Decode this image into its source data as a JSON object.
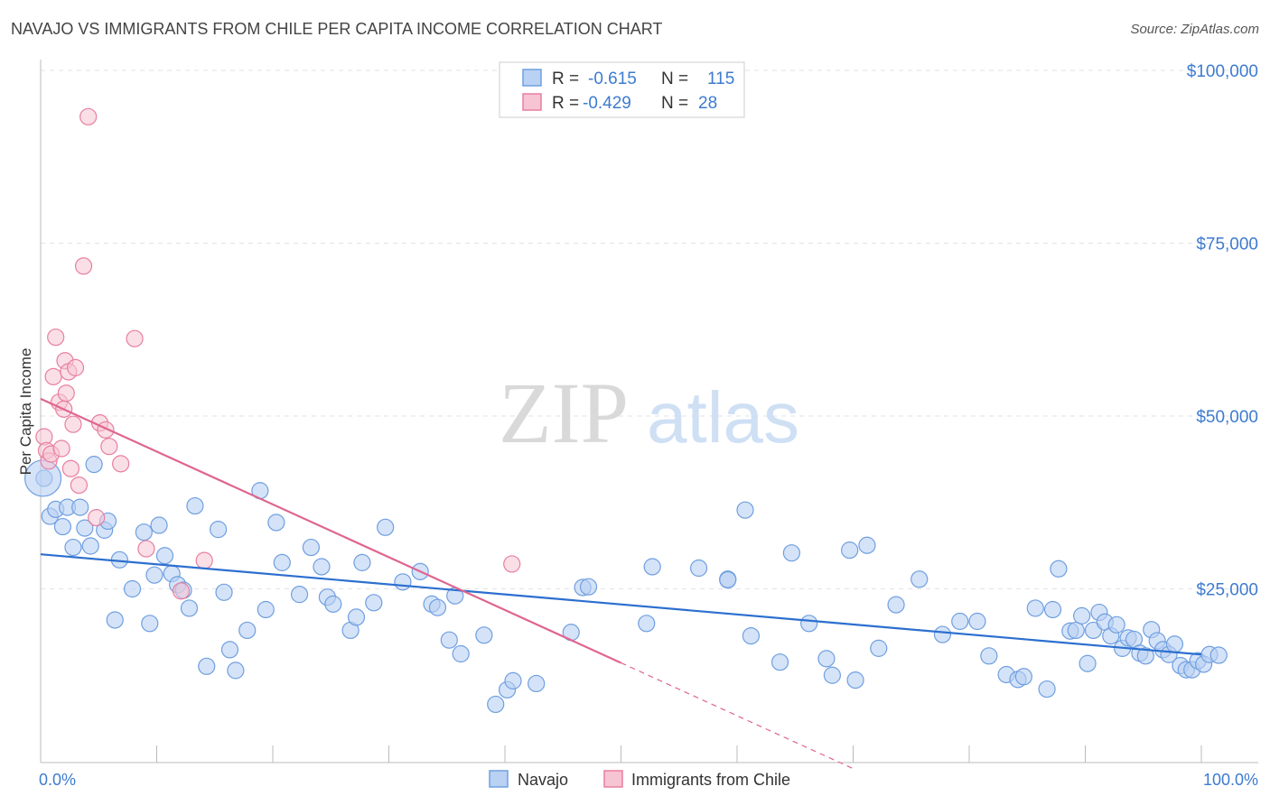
{
  "title": "NAVAJO VS IMMIGRANTS FROM CHILE PER CAPITA INCOME CORRELATION CHART",
  "source": "Source: ZipAtlas.com",
  "watermark": {
    "zip": "ZIP",
    "atlas": "atlas"
  },
  "colors": {
    "navajo": "#6f9fe0",
    "navajo_fill": "#b9d1f3",
    "chile": "#e87fa0",
    "chile_fill": "#f6c4d3",
    "navajo_line": "#2c6fcf",
    "chile_line": "#e0658f",
    "tick_text": "#3d7bd0"
  },
  "legend": {
    "r_label": "R =",
    "n_label": "N =",
    "rows": [
      {
        "series": "navajo",
        "r": "-0.615",
        "n": "115"
      },
      {
        "series": "chile",
        "r": "-0.429",
        "n": "28"
      }
    ]
  },
  "chart_data": {
    "type": "scatter",
    "title": "NAVAJO VS IMMIGRANTS FROM CHILE PER CAPITA INCOME CORRELATION CHART",
    "xlabel": "",
    "ylabel": "Per Capita Income",
    "xlim": [
      0,
      100
    ],
    "ylim": [
      0,
      105000
    ],
    "x_tick_labels": [
      "0.0%",
      "100.0%"
    ],
    "y_ticks": [
      25000,
      50000,
      75000,
      100000
    ],
    "y_tick_labels": [
      "$25,000",
      "$50,000",
      "$75,000",
      "$100,000"
    ],
    "grid": true,
    "legend_position": "bottom-center",
    "series": [
      {
        "name": "Navajo",
        "color": "#6f9fe0",
        "trend": {
          "x0": 0,
          "y0": 30000,
          "x1": 100,
          "y1": 15500
        },
        "points": [
          [
            0.3,
            41000
          ],
          [
            0.8,
            35500
          ],
          [
            1.3,
            36500
          ],
          [
            1.9,
            34000
          ],
          [
            2.3,
            36800
          ],
          [
            2.8,
            31000
          ],
          [
            3.4,
            36800
          ],
          [
            3.8,
            33800
          ],
          [
            4.3,
            31200
          ],
          [
            4.6,
            43000
          ],
          [
            5.5,
            33500
          ],
          [
            5.8,
            34800
          ],
          [
            6.4,
            20500
          ],
          [
            6.8,
            29200
          ],
          [
            7.9,
            25000
          ],
          [
            8.9,
            33200
          ],
          [
            9.4,
            20000
          ],
          [
            9.8,
            27000
          ],
          [
            10.2,
            34200
          ],
          [
            10.7,
            29800
          ],
          [
            11.3,
            27200
          ],
          [
            11.8,
            25600
          ],
          [
            12.3,
            24800
          ],
          [
            12.8,
            22200
          ],
          [
            13.3,
            37000
          ],
          [
            14.3,
            13800
          ],
          [
            15.3,
            33600
          ],
          [
            15.8,
            24500
          ],
          [
            16.3,
            16200
          ],
          [
            16.8,
            13200
          ],
          [
            17.8,
            19000
          ],
          [
            18.9,
            39200
          ],
          [
            19.4,
            22000
          ],
          [
            20.3,
            34600
          ],
          [
            20.8,
            28800
          ],
          [
            22.3,
            24200
          ],
          [
            23.3,
            31000
          ],
          [
            24.2,
            28200
          ],
          [
            24.7,
            23800
          ],
          [
            25.2,
            22800
          ],
          [
            26.7,
            19000
          ],
          [
            27.2,
            20900
          ],
          [
            27.7,
            28800
          ],
          [
            28.7,
            23000
          ],
          [
            29.7,
            33900
          ],
          [
            31.2,
            26000
          ],
          [
            32.7,
            27500
          ],
          [
            33.7,
            22800
          ],
          [
            34.2,
            22300
          ],
          [
            35.2,
            17600
          ],
          [
            35.7,
            24000
          ],
          [
            36.2,
            15600
          ],
          [
            38.2,
            18300
          ],
          [
            39.2,
            8300
          ],
          [
            40.2,
            10400
          ],
          [
            40.7,
            11700
          ],
          [
            42.7,
            11300
          ],
          [
            45.7,
            18700
          ],
          [
            46.7,
            25200
          ],
          [
            47.2,
            25300
          ],
          [
            52.2,
            20000
          ],
          [
            52.7,
            28200
          ],
          [
            56.7,
            28000
          ],
          [
            59.2,
            26400
          ],
          [
            60.7,
            36400
          ],
          [
            61.2,
            18200
          ],
          [
            63.7,
            14400
          ],
          [
            64.7,
            30200
          ],
          [
            66.2,
            20000
          ],
          [
            67.7,
            14900
          ],
          [
            68.2,
            12500
          ],
          [
            69.7,
            30600
          ],
          [
            70.2,
            11800
          ],
          [
            71.2,
            31300
          ],
          [
            72.2,
            16400
          ],
          [
            73.7,
            22700
          ],
          [
            75.7,
            26400
          ],
          [
            77.7,
            18400
          ],
          [
            79.2,
            20300
          ],
          [
            80.7,
            20300
          ],
          [
            81.7,
            15300
          ],
          [
            83.2,
            12600
          ],
          [
            84.2,
            11900
          ],
          [
            85.7,
            22200
          ],
          [
            86.7,
            10500
          ],
          [
            87.2,
            22000
          ],
          [
            87.7,
            27900
          ],
          [
            88.7,
            18900
          ],
          [
            89.2,
            19000
          ],
          [
            89.7,
            21100
          ],
          [
            90.2,
            14200
          ],
          [
            90.7,
            19000
          ],
          [
            91.2,
            21600
          ],
          [
            91.7,
            20200
          ],
          [
            92.2,
            18200
          ],
          [
            92.7,
            19800
          ],
          [
            93.2,
            16400
          ],
          [
            93.7,
            17900
          ],
          [
            94.2,
            17700
          ],
          [
            94.7,
            15700
          ],
          [
            95.2,
            15300
          ],
          [
            95.7,
            19100
          ],
          [
            96.2,
            17500
          ],
          [
            96.7,
            16200
          ],
          [
            97.2,
            15500
          ],
          [
            97.7,
            17000
          ],
          [
            98.2,
            13900
          ],
          [
            98.7,
            13300
          ],
          [
            99.2,
            13300
          ],
          [
            99.7,
            14600
          ],
          [
            100.2,
            14100
          ],
          [
            100.7,
            15500
          ],
          [
            101.5,
            15400
          ],
          [
            59.2,
            26300
          ],
          [
            84.7,
            12300
          ]
        ]
      },
      {
        "name": "Immigrants from Chile",
        "color": "#e87fa0",
        "trend": {
          "x0": 0,
          "y0": 52500,
          "x1": 50,
          "y1": 14300,
          "dash_x1": 70,
          "dash_y1": -1000
        },
        "points": [
          [
            0.3,
            47000
          ],
          [
            0.5,
            45000
          ],
          [
            0.7,
            43500
          ],
          [
            0.9,
            44500
          ],
          [
            1.1,
            55700
          ],
          [
            1.3,
            61400
          ],
          [
            1.6,
            52000
          ],
          [
            1.8,
            45300
          ],
          [
            2.0,
            51000
          ],
          [
            2.1,
            58000
          ],
          [
            2.2,
            53300
          ],
          [
            2.4,
            56400
          ],
          [
            2.6,
            42400
          ],
          [
            2.8,
            48800
          ],
          [
            3.0,
            57000
          ],
          [
            3.3,
            40000
          ],
          [
            3.7,
            71700
          ],
          [
            4.1,
            93300
          ],
          [
            4.8,
            35300
          ],
          [
            5.1,
            49000
          ],
          [
            5.6,
            48000
          ],
          [
            5.9,
            45600
          ],
          [
            6.9,
            43100
          ],
          [
            8.1,
            61200
          ],
          [
            9.1,
            30800
          ],
          [
            12.1,
            24700
          ],
          [
            14.1,
            29100
          ],
          [
            40.6,
            28600
          ]
        ]
      }
    ]
  },
  "bottom_legend": [
    {
      "series": "navajo",
      "label": "Navajo"
    },
    {
      "series": "chile",
      "label": "Immigrants from Chile"
    }
  ]
}
